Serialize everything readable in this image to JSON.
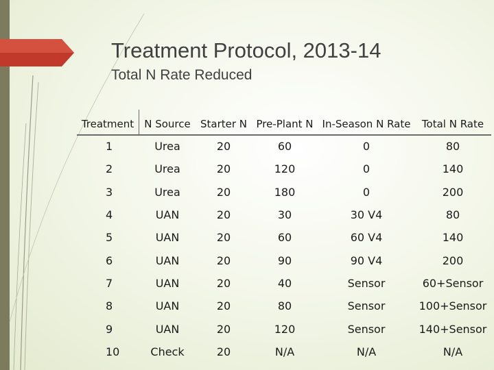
{
  "title": "Treatment Protocol, 2013-14",
  "subtitle": "Total N Rate Reduced",
  "colors": {
    "accent_red": "#c0392b",
    "band": "#7c7b5e",
    "text": "#404040"
  },
  "table": {
    "headers": [
      "Treatment",
      "N Source",
      "Starter N",
      "Pre-Plant N",
      "In-Season N Rate",
      "Total N Rate"
    ],
    "rows": [
      [
        "1",
        "Urea",
        "20",
        "60",
        "0",
        "80"
      ],
      [
        "2",
        "Urea",
        "20",
        "120",
        "0",
        "140"
      ],
      [
        "3",
        "Urea",
        "20",
        "180",
        "0",
        "200"
      ],
      [
        "4",
        "UAN",
        "20",
        "30",
        "30 V4",
        "80"
      ],
      [
        "5",
        "UAN",
        "20",
        "60",
        "60 V4",
        "140"
      ],
      [
        "6",
        "UAN",
        "20",
        "90",
        "90 V4",
        "200"
      ],
      [
        "7",
        "UAN",
        "20",
        "40",
        "Sensor",
        "60+Sensor"
      ],
      [
        "8",
        "UAN",
        "20",
        "80",
        "Sensor",
        "100+Sensor"
      ],
      [
        "9",
        "UAN",
        "20",
        "120",
        "Sensor",
        "140+Sensor"
      ],
      [
        "10",
        "Check",
        "20",
        "N/A",
        "N/A",
        "N/A"
      ]
    ]
  }
}
